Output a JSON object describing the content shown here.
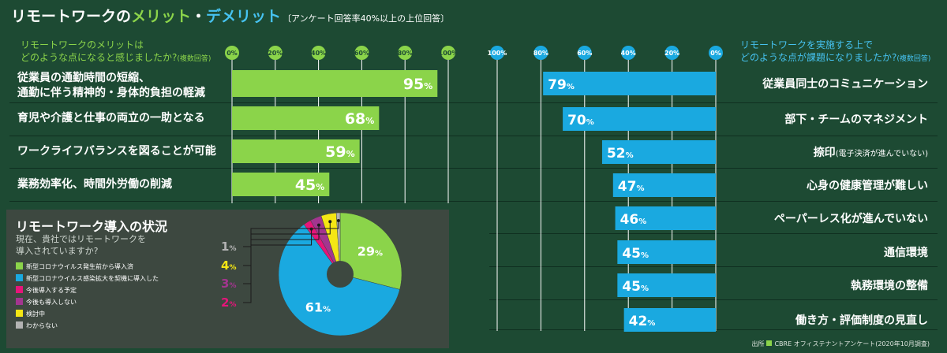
{
  "title": {
    "part1": "リモートワークの",
    "part2": "メリット",
    "part3": "・",
    "part4": "デメリット",
    "sub": "〔アンケート回答率40%以上の上位回答〕"
  },
  "colors": {
    "green": "#8bd44a",
    "blue": "#1aa9e0",
    "bg": "#1d4a33",
    "panel": "#3d4840"
  },
  "questions": {
    "left_line1": "リモートワークのメリットは",
    "left_line2": "どのような点になると感じましたか?",
    "left_note": "(複数回答)",
    "right_line1": "リモートワークを実施する上で",
    "right_line2": "どのような点が課題になりましたか?",
    "right_note": "(複数回答)"
  },
  "chart_data": [
    {
      "type": "bar",
      "orientation": "horizontal",
      "side": "merits",
      "axis_ticks": [
        "0%",
        "20%",
        "40%",
        "60%",
        "80%",
        "100%"
      ],
      "xlim": [
        0,
        100
      ],
      "unit": "%",
      "categories": [
        "従業員の通勤時間の短縮、\n通勤に伴う精神的・身体的負担の軽減",
        "育児や介護と仕事の両立の一助となる",
        "ワークライフバランスを図ることが可能",
        "業務効率化、時間外労働の削減"
      ],
      "values": [
        95,
        68,
        59,
        45
      ],
      "color": "#8bd44a"
    },
    {
      "type": "bar",
      "orientation": "horizontal-reversed",
      "side": "demerits",
      "axis_ticks": [
        "100%",
        "80%",
        "60%",
        "40%",
        "20%",
        "0%"
      ],
      "xlim": [
        0,
        100
      ],
      "unit": "%",
      "categories": [
        "従業員同士のコミュニケーション",
        "部下・チームのマネジメント",
        "捺印",
        "心身の健康管理が難しい",
        "ペーパーレス化が進んでいない",
        "通信環境",
        "執務環境の整備",
        "働き方・評価制度の見直し"
      ],
      "category_notes": [
        "",
        "",
        "(電子決済が進んでいない)",
        "",
        "",
        "",
        "",
        ""
      ],
      "values": [
        79,
        70,
        52,
        47,
        46,
        45,
        45,
        42
      ],
      "color": "#1aa9e0"
    },
    {
      "type": "pie",
      "title": "リモートワーク導入の状況",
      "question": "現在、貴社ではリモートワークを\n導入されていますか?",
      "labels": [
        "新型コロナウイルス発生前から導入済",
        "新型コロナウイルス感染拡大を契機に導入した",
        "今後導入する予定",
        "今後も導入しない",
        "検討中",
        "わからない"
      ],
      "values": [
        29,
        61,
        2,
        3,
        4,
        1
      ],
      "colors": [
        "#8bd44a",
        "#1aa9e0",
        "#e6157a",
        "#a3358f",
        "#f5e614",
        "#b3b3b3"
      ],
      "small_label_colors": [
        "#b3b3b3",
        "#f5e614",
        "#a3358f",
        "#e6157a"
      ]
    }
  ],
  "source": {
    "prefix": "出所",
    "text": "CBRE オフィステナントアンケート(2020年10月調査)"
  }
}
